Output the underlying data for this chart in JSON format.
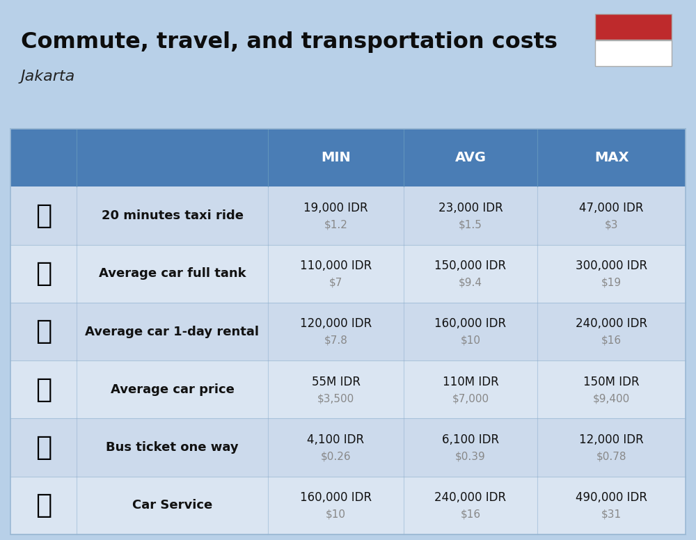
{
  "title": "Commute, travel, and transportation costs",
  "subtitle": "Jakarta",
  "bg_color": "#b8d0e8",
  "header_bg": "#4a7db5",
  "header_text_color": "#ffffff",
  "row_bg_even": "#ccdaec",
  "row_bg_odd": "#dae5f2",
  "col_divider": "#9ab8d4",
  "flag_red": "#be2a2c",
  "flag_white": "#ffffff",
  "rows": [
    {
      "label": "20 minutes taxi ride",
      "min_idr": "19,000 IDR",
      "min_usd": "$1.2",
      "avg_idr": "23,000 IDR",
      "avg_usd": "$1.5",
      "max_idr": "47,000 IDR",
      "max_usd": "$3"
    },
    {
      "label": "Average car full tank",
      "min_idr": "110,000 IDR",
      "min_usd": "$7",
      "avg_idr": "150,000 IDR",
      "avg_usd": "$9.4",
      "max_idr": "300,000 IDR",
      "max_usd": "$19"
    },
    {
      "label": "Average car 1-day rental",
      "min_idr": "120,000 IDR",
      "min_usd": "$7.8",
      "avg_idr": "160,000 IDR",
      "avg_usd": "$10",
      "max_idr": "240,000 IDR",
      "max_usd": "$16"
    },
    {
      "label": "Average car price",
      "min_idr": "55M IDR",
      "min_usd": "$3,500",
      "avg_idr": "110M IDR",
      "avg_usd": "$7,000",
      "max_idr": "150M IDR",
      "max_usd": "$9,400"
    },
    {
      "label": "Bus ticket one way",
      "min_idr": "4,100 IDR",
      "min_usd": "$0.26",
      "avg_idr": "6,100 IDR",
      "avg_usd": "$0.39",
      "max_idr": "12,000 IDR",
      "max_usd": "$0.78"
    },
    {
      "label": "Car Service",
      "min_idr": "160,000 IDR",
      "min_usd": "$10",
      "avg_idr": "240,000 IDR",
      "avg_usd": "$16",
      "max_idr": "490,000 IDR",
      "max_usd": "$31"
    }
  ]
}
